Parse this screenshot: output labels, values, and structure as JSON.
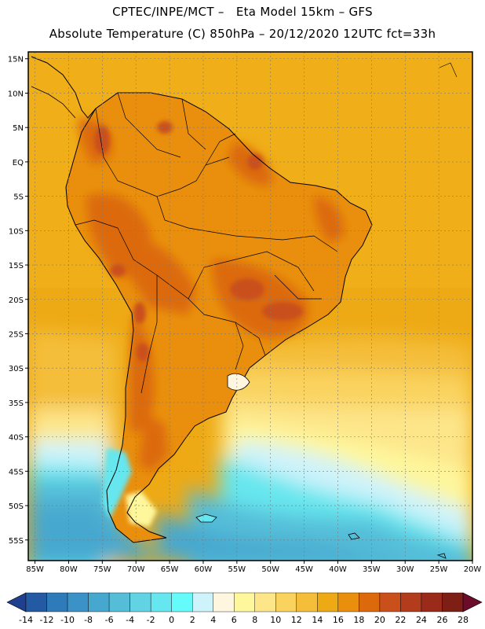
{
  "header": {
    "title_line1": "CPTEC/INPE/MCT –   Eta Model 15km – GFS",
    "title_line2": "Absolute Temperature (C) 850hPa – 20/12/2020 12UTC fct=33h"
  },
  "map": {
    "lon_labels": [
      "85W",
      "80W",
      "75W",
      "70W",
      "65W",
      "60W",
      "55W",
      "50W",
      "45W",
      "40W",
      "35W",
      "30W",
      "25W",
      "20W"
    ],
    "lon_values": [
      -85,
      -80,
      -75,
      -70,
      -65,
      -60,
      -55,
      -50,
      -45,
      -40,
      -35,
      -30,
      -25,
      -20
    ],
    "lat_labels": [
      "15N",
      "10N",
      "5N",
      "EQ",
      "5S",
      "10S",
      "15S",
      "20S",
      "25S",
      "30S",
      "35S",
      "40S",
      "45S",
      "50S",
      "55S"
    ],
    "lat_values": [
      15,
      10,
      5,
      0,
      -5,
      -10,
      -15,
      -20,
      -25,
      -30,
      -35,
      -40,
      -45,
      -50,
      -55
    ],
    "lon_range": [
      -86,
      -20
    ],
    "lat_range": [
      -58,
      16
    ]
  },
  "colorbar": {
    "labels": [
      "-14",
      "-12",
      "-10",
      "-8",
      "-6",
      "-4",
      "-2",
      "0",
      "2",
      "4",
      "6",
      "8",
      "10",
      "12",
      "14",
      "16",
      "18",
      "20",
      "22",
      "24",
      "26",
      "28"
    ],
    "colors": [
      "#1f3f8f",
      "#245aa3",
      "#2f7ab8",
      "#3a92c6",
      "#46a8cf",
      "#55bdd8",
      "#62d3e3",
      "#66e6ee",
      "#66fbfb",
      "#cef3fb",
      "#fff6df",
      "#fef79c",
      "#fde58a",
      "#fad35e",
      "#f4be3a",
      "#eeaa15",
      "#e98f0d",
      "#dc6a0d",
      "#c9501a",
      "#b33c1c",
      "#9a2a1a",
      "#7e1f16",
      "#6a0c2a"
    ]
  }
}
